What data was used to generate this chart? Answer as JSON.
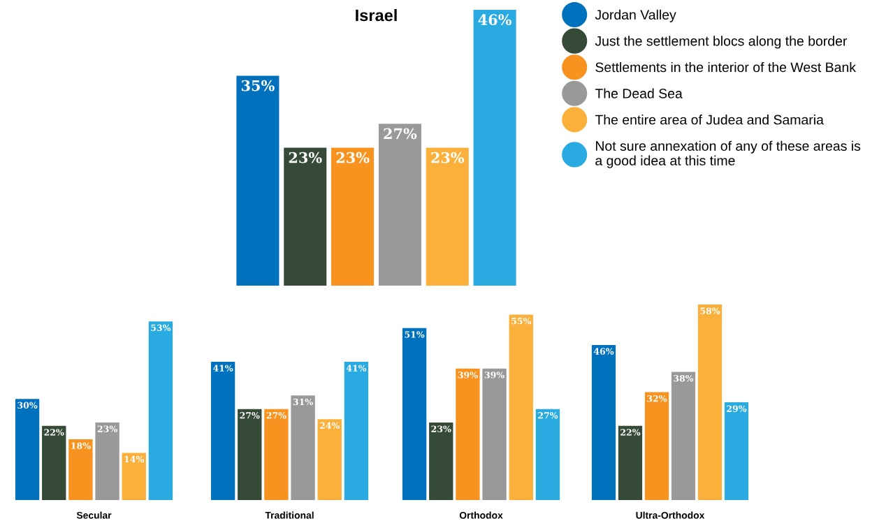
{
  "chart_data": [
    {
      "type": "bar",
      "title": "Israel",
      "categories": [
        null
      ],
      "legend": "top right",
      "tick_labels": false,
      "series": [
        {
          "name": "Jordan Valley",
          "color": "#0071bc",
          "values": [
            35
          ],
          "value_labels": [
            "35%"
          ]
        },
        {
          "name": "Just the settlement blocs along the border",
          "color": "#364b37",
          "values": [
            23
          ],
          "value_labels": [
            "23%"
          ]
        },
        {
          "name": "Settlements in the interior of the West Bank",
          "color": "#f7931e",
          "values": [
            23
          ],
          "value_labels": [
            "23%"
          ]
        },
        {
          "name": "The Dead Sea",
          "color": "#999999",
          "values": [
            27
          ],
          "value_labels": [
            "27%"
          ]
        },
        {
          "name": "The entire area of Judea and Samaria",
          "color": "#fbb03b",
          "values": [
            23
          ],
          "value_labels": [
            "23%"
          ]
        },
        {
          "name": "Not sure annexation of any of these areas is\na good idea at this time",
          "color": "#29abe2",
          "values": [
            46
          ],
          "value_labels": [
            "46%"
          ]
        }
      ]
    },
    {
      "type": "bar",
      "xlabel": "Secular",
      "categories": [
        null
      ],
      "tick_labels": false,
      "series": [
        {
          "color": "#0071bc",
          "values": [
            30
          ],
          "value_labels": [
            "30%"
          ]
        },
        {
          "color": "#364b37",
          "values": [
            22
          ],
          "value_labels": [
            "22%"
          ]
        },
        {
          "color": "#f7931e",
          "values": [
            18
          ],
          "value_labels": [
            "18%"
          ]
        },
        {
          "color": "#999999",
          "values": [
            23
          ],
          "value_labels": [
            "23%"
          ]
        },
        {
          "color": "#fbb03b",
          "values": [
            14
          ],
          "value_labels": [
            "14%"
          ]
        },
        {
          "color": "#29abe2",
          "values": [
            53
          ],
          "value_labels": [
            "53%"
          ]
        }
      ]
    },
    {
      "type": "bar",
      "xlabel": "Traditional",
      "categories": [
        null
      ],
      "tick_labels": false,
      "series": [
        {
          "color": "#0071bc",
          "values": [
            41
          ],
          "value_labels": [
            "41%"
          ]
        },
        {
          "color": "#364b37",
          "values": [
            27
          ],
          "value_labels": [
            "27%"
          ]
        },
        {
          "color": "#f7931e",
          "values": [
            27
          ],
          "value_labels": [
            "27%"
          ]
        },
        {
          "color": "#999999",
          "values": [
            31
          ],
          "value_labels": [
            "31%"
          ]
        },
        {
          "color": "#fbb03b",
          "values": [
            24
          ],
          "value_labels": [
            "24%"
          ]
        },
        {
          "color": "#29abe2",
          "values": [
            41
          ],
          "value_labels": [
            "41%"
          ]
        }
      ]
    },
    {
      "type": "bar",
      "xlabel": "Orthodox",
      "categories": [
        null
      ],
      "tick_labels": false,
      "series": [
        {
          "color": "#0071bc",
          "values": [
            51
          ],
          "value_labels": [
            "51%"
          ]
        },
        {
          "color": "#364b37",
          "values": [
            23
          ],
          "value_labels": [
            "23%"
          ]
        },
        {
          "color": "#f7931e",
          "values": [
            39
          ],
          "value_labels": [
            "39%"
          ]
        },
        {
          "color": "#999999",
          "values": [
            39
          ],
          "value_labels": [
            "39%"
          ]
        },
        {
          "color": "#fbb03b",
          "values": [
            55
          ],
          "value_labels": [
            "55%"
          ]
        },
        {
          "color": "#29abe2",
          "values": [
            27
          ],
          "value_labels": [
            "27%"
          ]
        }
      ]
    },
    {
      "type": "bar",
      "xlabel": "Ultra-Orthodox",
      "categories": [
        null
      ],
      "tick_labels": false,
      "series": [
        {
          "color": "#0071bc",
          "values": [
            46
          ],
          "value_labels": [
            "46%"
          ]
        },
        {
          "color": "#364b37",
          "values": [
            22
          ],
          "value_labels": [
            "22%"
          ]
        },
        {
          "color": "#f7931e",
          "values": [
            32
          ],
          "value_labels": [
            "32%"
          ]
        },
        {
          "color": "#999999",
          "values": [
            38
          ],
          "value_labels": [
            "38%"
          ]
        },
        {
          "color": "#fbb03b",
          "values": [
            58
          ],
          "value_labels": [
            "58%"
          ]
        },
        {
          "color": "#29abe2",
          "values": [
            29
          ],
          "value_labels": [
            "29%"
          ]
        }
      ]
    }
  ]
}
